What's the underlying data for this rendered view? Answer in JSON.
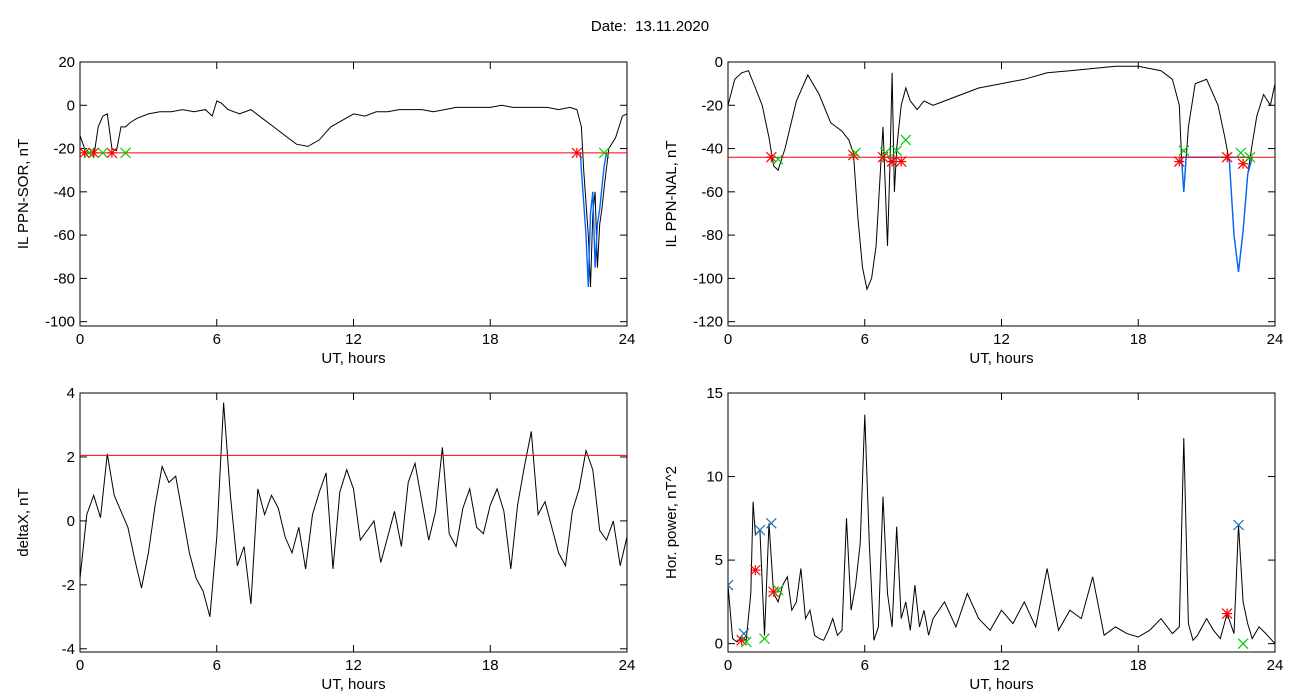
{
  "header": {
    "title": "Date:  13.11.2020"
  },
  "colors": {
    "line": "#000000",
    "threshold": "#ff0000",
    "event_segment": "#0066ff",
    "start_marker": "#ff0000",
    "end_marker": "#00cc00",
    "power_marker": "#1a6fb0"
  },
  "chart_data": [
    {
      "type": "line",
      "name": "il-ppn-sor",
      "xlabel": "UT, hours",
      "ylabel": "IL PPN-SOR, nT",
      "xlim": [
        0,
        24
      ],
      "ylim": [
        -102,
        20
      ],
      "xticks": [
        0,
        6,
        12,
        18,
        24
      ],
      "yticks": [
        20,
        0,
        -20,
        -40,
        -60,
        -80,
        -100
      ],
      "threshold": -22,
      "x": [
        0,
        0.2,
        0.4,
        0.6,
        0.8,
        1.0,
        1.2,
        1.4,
        1.6,
        1.8,
        2.0,
        2.2,
        2.5,
        3,
        3.5,
        4,
        4.5,
        5,
        5.5,
        5.8,
        6.0,
        6.2,
        6.5,
        7,
        7.5,
        8,
        8.5,
        9,
        9.5,
        10,
        10.5,
        11,
        11.5,
        12,
        12.5,
        13,
        13.5,
        14,
        14.5,
        15,
        15.5,
        16,
        16.5,
        17,
        17.5,
        18,
        18.5,
        19,
        19.5,
        20,
        20.5,
        21,
        21.5,
        21.8,
        22.0,
        22.1,
        22.2,
        22.3,
        22.4,
        22.5,
        22.6,
        22.7,
        22.8,
        22.9,
        23.0,
        23.2,
        23.5,
        23.8,
        24
      ],
      "y": [
        -14,
        -20,
        -22,
        -24,
        -10,
        -5,
        -4,
        -20,
        -21,
        -10,
        -10,
        -8,
        -6,
        -4,
        -3,
        -3,
        -2,
        -3,
        -2,
        -5,
        2,
        1,
        -2,
        -4,
        -2,
        -6,
        -10,
        -14,
        -18,
        -19,
        -16,
        -10,
        -7,
        -4,
        -5,
        -3,
        -3,
        -2,
        -2,
        -2,
        -3,
        -2,
        -1,
        -1,
        -1,
        -1,
        0,
        -1,
        -1,
        -1,
        -1,
        -2,
        -1,
        -2,
        -10,
        -30,
        -45,
        -60,
        -84,
        -50,
        -40,
        -75,
        -55,
        -48,
        -38,
        -20,
        -15,
        -5,
        -4
      ],
      "event_x": [
        21.95,
        22.0,
        22.1,
        22.2,
        22.3,
        22.4,
        22.5,
        22.6,
        22.7,
        22.8,
        22.9,
        23.0,
        23.1
      ],
      "event_y": [
        -22,
        -30,
        -45,
        -60,
        -84,
        -50,
        -40,
        -75,
        -55,
        -48,
        -38,
        -28,
        -22
      ],
      "start_markers": {
        "x": [
          0.2,
          0.6,
          1.4,
          21.8
        ],
        "y": [
          -22,
          -22,
          -22,
          -22
        ]
      },
      "end_markers": {
        "x": [
          0.4,
          1.0,
          2.0,
          23.0
        ],
        "y": [
          -22,
          -22,
          -22,
          -22
        ]
      }
    },
    {
      "type": "line",
      "name": "il-ppn-nal",
      "xlabel": "UT, hours",
      "ylabel": "IL PPN-NAL, nT",
      "xlim": [
        0,
        24
      ],
      "ylim": [
        -122,
        0
      ],
      "xticks": [
        0,
        6,
        12,
        18,
        24
      ],
      "yticks": [
        0,
        -20,
        -40,
        -60,
        -80,
        -100,
        -120
      ],
      "threshold": -44,
      "x": [
        0,
        0.3,
        0.6,
        0.9,
        1.2,
        1.5,
        1.8,
        2.0,
        2.2,
        2.5,
        3,
        3.5,
        4,
        4.5,
        5,
        5.3,
        5.5,
        5.7,
        5.9,
        6.1,
        6.3,
        6.5,
        6.7,
        6.8,
        6.9,
        7.0,
        7.1,
        7.2,
        7.3,
        7.4,
        7.5,
        7.6,
        7.8,
        8.0,
        8.3,
        8.6,
        9,
        9.5,
        10,
        11,
        12,
        13,
        14,
        15,
        16,
        17,
        18,
        18.5,
        19,
        19.5,
        19.8,
        19.9,
        20.0,
        20.2,
        20.5,
        21,
        21.5,
        21.8,
        22.0,
        22.2,
        22.4,
        22.6,
        22.8,
        23.0,
        23.2,
        23.5,
        23.8,
        24
      ],
      "y": [
        -20,
        -8,
        -5,
        -4,
        -12,
        -20,
        -35,
        -48,
        -50,
        -40,
        -18,
        -6,
        -15,
        -28,
        -32,
        -36,
        -42,
        -72,
        -95,
        -105,
        -100,
        -85,
        -48,
        -30,
        -58,
        -85,
        -50,
        -5,
        -60,
        -40,
        -30,
        -20,
        -12,
        -18,
        -22,
        -18,
        -20,
        -18,
        -16,
        -12,
        -10,
        -8,
        -5,
        -4,
        -3,
        -2,
        -2,
        -3,
        -4,
        -8,
        -20,
        -45,
        -60,
        -30,
        -10,
        -8,
        -20,
        -35,
        -46,
        -80,
        -97,
        -78,
        -52,
        -38,
        -25,
        -15,
        -20,
        -10
      ],
      "event_x": [
        21.9,
        22.0,
        22.2,
        22.4,
        22.6,
        22.8,
        23.0,
        19.85,
        19.9,
        20.0,
        20.1
      ],
      "event_y": [
        -44,
        -46,
        -80,
        -97,
        -78,
        -52,
        -44,
        -44,
        -45,
        -60,
        -44
      ],
      "start_markers": {
        "x": [
          1.9,
          5.5,
          6.8,
          7.2,
          7.6,
          19.8,
          21.9,
          22.6
        ],
        "y": [
          -44,
          -43,
          -44,
          -46,
          -46,
          -46,
          -44,
          -47
        ]
      },
      "end_markers": {
        "x": [
          2.2,
          5.6,
          6.9,
          7.4,
          7.8,
          20.0,
          22.5,
          22.9
        ],
        "y": [
          -45,
          -42,
          -42,
          -41,
          -36,
          -41,
          -42,
          -44
        ]
      }
    },
    {
      "type": "line",
      "name": "delta-x",
      "xlabel": "UT, hours",
      "ylabel": "deltaX, nT",
      "xlim": [
        0,
        24
      ],
      "ylim": [
        -4.1,
        4
      ],
      "xticks": [
        0,
        6,
        12,
        18,
        24
      ],
      "yticks": [
        4,
        2,
        0,
        -2,
        -4
      ],
      "threshold": 2.05,
      "x": [
        0,
        0.3,
        0.6,
        0.9,
        1.2,
        1.5,
        1.8,
        2.1,
        2.4,
        2.7,
        3.0,
        3.3,
        3.6,
        3.9,
        4.2,
        4.5,
        4.8,
        5.1,
        5.4,
        5.7,
        6.0,
        6.3,
        6.6,
        6.9,
        7.2,
        7.5,
        7.8,
        8.1,
        8.4,
        8.7,
        9.0,
        9.3,
        9.6,
        9.9,
        10.2,
        10.5,
        10.8,
        11.1,
        11.4,
        11.7,
        12.0,
        12.3,
        12.6,
        12.9,
        13.2,
        13.5,
        13.8,
        14.1,
        14.4,
        14.7,
        15.0,
        15.3,
        15.6,
        15.9,
        16.2,
        16.5,
        16.8,
        17.1,
        17.4,
        17.7,
        18.0,
        18.3,
        18.6,
        18.9,
        19.2,
        19.5,
        19.8,
        20.1,
        20.4,
        20.7,
        21.0,
        21.3,
        21.6,
        21.9,
        22.2,
        22.5,
        22.8,
        23.1,
        23.4,
        23.7,
        24
      ],
      "y": [
        -1.8,
        0.2,
        0.8,
        0.1,
        2.1,
        0.8,
        0.3,
        -0.2,
        -1.2,
        -2.1,
        -1.0,
        0.5,
        1.7,
        1.2,
        1.4,
        0.2,
        -1.0,
        -1.8,
        -2.2,
        -3.0,
        -0.5,
        3.7,
        0.8,
        -1.4,
        -0.8,
        -2.6,
        1.0,
        0.2,
        0.8,
        0.4,
        -0.5,
        -1.0,
        -0.2,
        -1.5,
        0.2,
        0.9,
        1.5,
        -1.5,
        0.9,
        1.6,
        1.0,
        -0.6,
        -0.3,
        0.0,
        -1.3,
        -0.5,
        0.3,
        -0.8,
        1.2,
        1.8,
        0.6,
        -0.6,
        0.3,
        2.3,
        -0.4,
        -0.8,
        0.4,
        1.0,
        -0.2,
        -0.4,
        0.5,
        1.0,
        0.3,
        -1.5,
        0.5,
        1.7,
        2.8,
        0.2,
        0.6,
        -0.2,
        -1.0,
        -1.4,
        0.3,
        1.0,
        2.2,
        1.6,
        -0.3,
        -0.6,
        0.0,
        -1.4,
        -0.5
      ]
    },
    {
      "type": "line",
      "name": "hor-power",
      "xlabel": "UT, hours",
      "ylabel": "Hor. power, nT^2",
      "xlim": [
        0,
        24
      ],
      "ylim": [
        -0.5,
        15
      ],
      "xticks": [
        0,
        6,
        12,
        18,
        24
      ],
      "yticks": [
        0,
        5,
        10,
        15
      ],
      "x": [
        0,
        0.2,
        0.4,
        0.6,
        0.8,
        1.0,
        1.1,
        1.2,
        1.4,
        1.6,
        1.8,
        2.0,
        2.2,
        2.4,
        2.6,
        2.8,
        3.0,
        3.2,
        3.4,
        3.6,
        3.8,
        4.0,
        4.2,
        4.4,
        4.6,
        4.8,
        5.0,
        5.2,
        5.4,
        5.6,
        5.8,
        6.0,
        6.2,
        6.4,
        6.6,
        6.8,
        7.0,
        7.2,
        7.4,
        7.6,
        7.8,
        8.0,
        8.2,
        8.4,
        8.6,
        8.8,
        9.0,
        9.5,
        10,
        10.5,
        11,
        11.5,
        12,
        12.5,
        13,
        13.5,
        14,
        14.5,
        15,
        15.5,
        16,
        16.5,
        17,
        17.5,
        18,
        18.5,
        19,
        19.5,
        19.8,
        20.0,
        20.2,
        20.4,
        20.6,
        21,
        21.3,
        21.6,
        21.9,
        22.2,
        22.4,
        22.6,
        22.8,
        23.0,
        23.3,
        23.6,
        24
      ],
      "y": [
        3.5,
        0.3,
        0.1,
        0.4,
        0.2,
        3.0,
        8.5,
        6.5,
        6.8,
        0.5,
        7.2,
        3.0,
        2.5,
        3.5,
        4.0,
        2.0,
        2.5,
        4.5,
        1.5,
        2.0,
        0.5,
        0.3,
        0.2,
        0.8,
        1.5,
        0.5,
        0.8,
        7.5,
        2.0,
        3.5,
        6.0,
        13.7,
        6.0,
        0.2,
        1.0,
        8.8,
        3.0,
        1.0,
        7.0,
        1.5,
        2.5,
        0.8,
        3.5,
        1.0,
        2.0,
        0.5,
        1.5,
        2.5,
        1.0,
        3.0,
        1.5,
        0.8,
        2.0,
        1.2,
        2.5,
        1.0,
        4.5,
        0.8,
        2.0,
        1.5,
        4.0,
        0.5,
        1.0,
        0.6,
        0.4,
        0.8,
        1.5,
        0.6,
        1.0,
        12.3,
        1.2,
        0.2,
        0.5,
        1.5,
        0.8,
        0.3,
        1.8,
        0.6,
        7.1,
        2.5,
        1.2,
        0.3,
        1.0,
        0.6,
        0.0
      ],
      "start_markers": {
        "x": [
          0.6,
          1.2,
          2.0,
          21.9
        ],
        "y": [
          0.2,
          4.4,
          3.1,
          1.8
        ]
      },
      "end_markers": {
        "x": [
          0.8,
          1.6,
          2.2,
          22.6
        ],
        "y": [
          0.1,
          0.3,
          3.2,
          0.0
        ]
      },
      "peak_markers": {
        "x": [
          0.0,
          0.7,
          1.4,
          1.9,
          22.4
        ],
        "y": [
          3.5,
          0.6,
          6.8,
          7.2,
          7.1
        ]
      }
    }
  ]
}
